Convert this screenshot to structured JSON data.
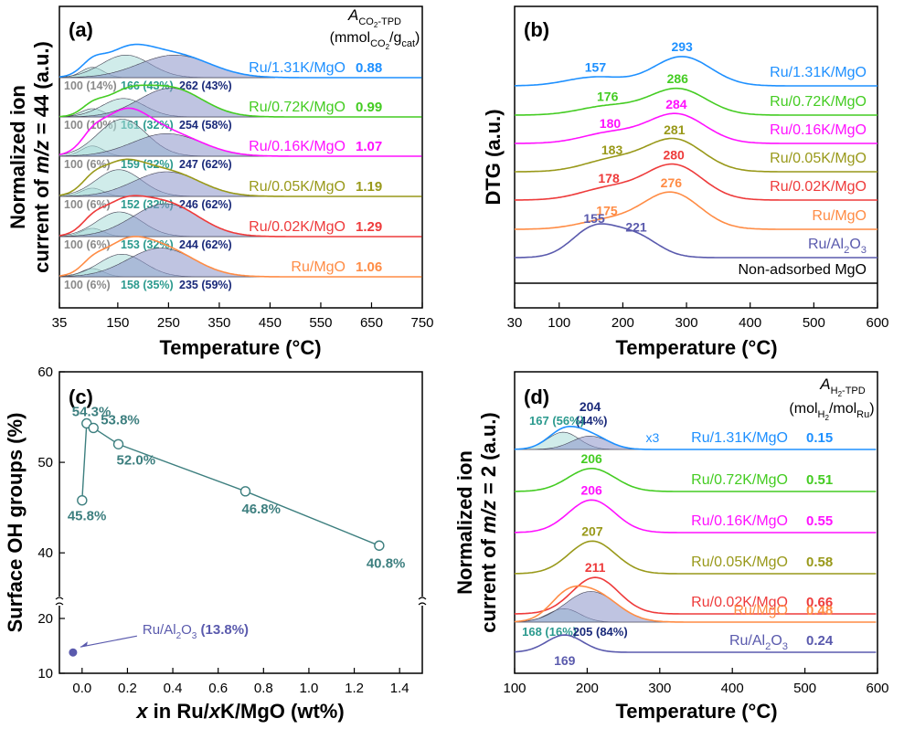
{
  "colors": {
    "axis": "#000000",
    "ru131": "#1e90ff",
    "ru072": "#44cc22",
    "ru016": "#ff11ff",
    "ru005": "#99991a",
    "ru002": "#ee3b3b",
    "rumgo": "#ff8c45",
    "rual": "#5a5aad",
    "teal": "#2b9a8e",
    "navy": "#1a2a7a",
    "grey": "#8a8a8a",
    "ctrend": "#3d7f7f",
    "fillLight": "#aadcd8",
    "fillDark": "#8a93c8"
  },
  "chart_data": [
    {
      "id": "a",
      "type": "line",
      "panel_label": "(a)",
      "xlabel": "Temperature (°C)",
      "ylabel_line1": "Normalized ion",
      "ylabel_line2_pre": "current of ",
      "ylabel_line2_ital": "m/z",
      "ylabel_line2_post": " = 44 (a.u.)",
      "xlim": [
        35,
        750
      ],
      "xticks": [
        35,
        150,
        250,
        350,
        450,
        550,
        650,
        750
      ],
      "header_A": "A",
      "header_sub": "CO",
      "header_sub2": "2",
      "header_sub3": "-TPD",
      "header_unit_open": "(mmol",
      "header_unit_sub": "CO",
      "header_unit_sub2": "2",
      "header_unit_mid": "/g",
      "header_unit_sub3": "cat",
      "header_unit_close": ")",
      "series": [
        {
          "name": "Ru/1.31K/MgO",
          "color": "ru131",
          "value": "0.88",
          "peaks": [
            {
              "t": 100,
              "a": 0.25,
              "w": 22
            },
            {
              "t": 166,
              "a": 0.55,
              "w": 48
            },
            {
              "t": 262,
              "a": 0.55,
              "w": 70
            }
          ]
        },
        {
          "name": "Ru/0.72K/MgO",
          "color": "ru072",
          "value": "0.99",
          "peaks": [
            {
              "t": 100,
              "a": 0.2,
              "w": 22
            },
            {
              "t": 161,
              "a": 0.45,
              "w": 42
            },
            {
              "t": 254,
              "a": 0.7,
              "w": 62
            }
          ]
        },
        {
          "name": "Ru/0.16K/MgO",
          "color": "ru016",
          "value": "1.07",
          "peaks": [
            {
              "t": 100,
              "a": 0.25,
              "w": 22
            },
            {
              "t": 159,
              "a": 0.9,
              "w": 48
            },
            {
              "t": 247,
              "a": 0.55,
              "w": 68
            }
          ]
        },
        {
          "name": "Ru/0.05K/MgO",
          "color": "ru005",
          "value": "1.19",
          "peaks": [
            {
              "t": 100,
              "a": 0.2,
              "w": 22
            },
            {
              "t": 152,
              "a": 0.65,
              "w": 45
            },
            {
              "t": 246,
              "a": 0.6,
              "w": 65
            }
          ]
        },
        {
          "name": "Ru/0.02K/MgO",
          "color": "ru002",
          "value": "1.29",
          "peaks": [
            {
              "t": 100,
              "a": 0.2,
              "w": 22
            },
            {
              "t": 153,
              "a": 0.6,
              "w": 45
            },
            {
              "t": 244,
              "a": 0.8,
              "w": 65
            }
          ]
        },
        {
          "name": "Ru/MgO",
          "color": "rumgo",
          "value": "1.06",
          "peaks": [
            {
              "t": 100,
              "a": 0.2,
              "w": 22
            },
            {
              "t": 158,
              "a": 0.55,
              "w": 45
            },
            {
              "t": 235,
              "a": 0.7,
              "w": 65
            }
          ]
        }
      ],
      "annotations": [
        [
          "100 (14%)",
          "166 (43%)",
          "262 (43%)"
        ],
        [
          "100 (10%)",
          "161 (32%)",
          "254 (58%)"
        ],
        [
          "100 (6%)",
          "159 (32%)",
          "247 (62%)"
        ],
        [
          "100 (6%)",
          "152 (32%)",
          "246 (62%)"
        ],
        [
          "100 (6%)",
          "153 (32%)",
          "244 (62%)"
        ],
        [
          "100 (6%)",
          "158 (35%)",
          "235 (59%)"
        ]
      ]
    },
    {
      "id": "b",
      "type": "line",
      "panel_label": "(b)",
      "xlabel": "Temperature (°C)",
      "ylabel": "DTG (a.u.)",
      "xlim": [
        30,
        600
      ],
      "xticks": [
        30,
        100,
        200,
        300,
        400,
        500,
        600
      ],
      "series": [
        {
          "name": "Ru/1.31K/MgO",
          "color": "ru131",
          "peaks": [
            {
              "t": 157,
              "a": 0.3,
              "w": 45
            },
            {
              "t": 293,
              "a": 1.0,
              "w": 45
            }
          ],
          "labels": [
            "157",
            "293"
          ]
        },
        {
          "name": "Ru/0.72K/MgO",
          "color": "ru072",
          "peaks": [
            {
              "t": 176,
              "a": 0.3,
              "w": 45
            },
            {
              "t": 286,
              "a": 0.9,
              "w": 45
            }
          ],
          "labels": [
            "176",
            "286"
          ]
        },
        {
          "name": "Ru/0.16K/MgO",
          "color": "ru016",
          "peaks": [
            {
              "t": 180,
              "a": 0.35,
              "w": 45
            },
            {
              "t": 284,
              "a": 1.0,
              "w": 45
            }
          ],
          "labels": [
            "180",
            "284"
          ]
        },
        {
          "name": "Ru/0.05K/MgO",
          "color": "ru005",
          "peaks": [
            {
              "t": 183,
              "a": 0.4,
              "w": 45
            },
            {
              "t": 281,
              "a": 1.1,
              "w": 45
            }
          ],
          "labels": [
            "183",
            "281"
          ]
        },
        {
          "name": "Ru/0.02K/MgO",
          "color": "ru002",
          "peaks": [
            {
              "t": 178,
              "a": 0.4,
              "w": 45
            },
            {
              "t": 280,
              "a": 1.2,
              "w": 45
            }
          ],
          "labels": [
            "178",
            "280"
          ]
        },
        {
          "name": "Ru/MgO",
          "color": "rumgo",
          "peaks": [
            {
              "t": 175,
              "a": 0.3,
              "w": 45
            },
            {
              "t": 276,
              "a": 1.25,
              "w": 45
            }
          ],
          "labels": [
            "175",
            "276"
          ]
        },
        {
          "name_pre": "Ru/Al",
          "name_sub": "2",
          "name_mid": "O",
          "name_sub2": "3",
          "color": "rual",
          "peaks": [
            {
              "t": 155,
              "a": 1.0,
              "w": 35
            },
            {
              "t": 221,
              "a": 0.7,
              "w": 35
            }
          ],
          "labels": [
            "155",
            "221"
          ]
        },
        {
          "name": "Non-adsorbed MgO",
          "color": "axis",
          "peaks": [],
          "labels": []
        }
      ]
    },
    {
      "id": "c",
      "type": "scatter",
      "panel_label": "(c)",
      "xlabel_ital": "x",
      "xlabel_mid": " in Ru/",
      "xlabel_ital2": "x",
      "xlabel_post": "K/MgO (wt%)",
      "ylabel": "Surface OH groups (%)",
      "xlim": [
        -0.1,
        1.5
      ],
      "xticks": [
        "0.0",
        "0.2",
        "0.4",
        "0.6",
        "0.8",
        "1.0",
        "1.2",
        "1.4"
      ],
      "yticks_upper": [
        "40",
        "50",
        "60"
      ],
      "yticks_lower": [
        "10",
        "20"
      ],
      "points": [
        {
          "x": 0.0,
          "y": 45.8,
          "label": "45.8%"
        },
        {
          "x": 0.02,
          "y": 54.3,
          "label": "54.3%"
        },
        {
          "x": 0.05,
          "y": 53.8,
          "label": "53.8%"
        },
        {
          "x": 0.16,
          "y": 52.0,
          "label": "52.0%"
        },
        {
          "x": 0.72,
          "y": 46.8,
          "label": "46.8%"
        },
        {
          "x": 1.31,
          "y": 40.8,
          "label": "40.8%"
        }
      ],
      "ref_point": {
        "x": -0.04,
        "y": 13.8,
        "label_pre": "Ru/Al",
        "label_sub": "2",
        "label_mid": "O",
        "label_sub2": "3",
        "label_post": " (13.8%)"
      }
    },
    {
      "id": "d",
      "type": "line",
      "panel_label": "(d)",
      "xlabel": "Temperature (°C)",
      "ylabel_line1": "Normalized ion",
      "ylabel_line2_pre": "current of ",
      "ylabel_line2_ital": "m/z",
      "ylabel_line2_post": " = 2 (a.u.)",
      "xlim": [
        100,
        600
      ],
      "xticks": [
        100,
        200,
        300,
        400,
        500,
        600
      ],
      "header_A": "A",
      "header_sub": "H",
      "header_sub2": "2",
      "header_sub3": "-TPD",
      "header_unit_open": "(mol",
      "header_unit_sub": "H",
      "header_unit_sub2": "2",
      "header_unit_mid": "/mol",
      "header_unit_sub3": "Ru",
      "header_unit_close": ")",
      "multiplier": "x3",
      "series": [
        {
          "name": "Ru/1.31K/MgO",
          "color": "ru131",
          "value": "0.15",
          "peaks": [
            {
              "t": 167,
              "a": 0.45,
              "w": 22
            },
            {
              "t": 204,
              "a": 0.35,
              "w": 25
            }
          ],
          "labels": [
            "204"
          ]
        },
        {
          "name": "Ru/0.72K/MgO",
          "color": "ru072",
          "value": "0.51",
          "peaks": [
            {
              "t": 206,
              "a": 0.6,
              "w": 32
            }
          ],
          "labels": [
            "206"
          ]
        },
        {
          "name": "Ru/0.16K/MgO",
          "color": "ru016",
          "value": "0.55",
          "peaks": [
            {
              "t": 206,
              "a": 0.85,
              "w": 32
            }
          ],
          "labels": [
            "206"
          ]
        },
        {
          "name": "Ru/0.05K/MgO",
          "color": "ru005",
          "value": "0.58",
          "peaks": [
            {
              "t": 207,
              "a": 0.85,
              "w": 32
            }
          ],
          "labels": [
            "207"
          ]
        },
        {
          "name": "Ru/0.02K/MgO",
          "color": "ru002",
          "value": "0.66",
          "peaks": [
            {
              "t": 211,
              "a": 0.95,
              "w": 32
            }
          ],
          "labels": [
            "211"
          ]
        },
        {
          "name": "Ru/MgO",
          "color": "rumgo",
          "value": "0.48",
          "peaks": [
            {
              "t": 168,
              "a": 0.35,
              "w": 22
            },
            {
              "t": 205,
              "a": 0.8,
              "w": 35
            }
          ],
          "labels": []
        },
        {
          "name_pre": "Ru/Al",
          "name_sub": "2",
          "name_mid": "O",
          "name_sub2": "3",
          "color": "rual",
          "value": "0.24",
          "peaks": [
            {
              "t": 169,
              "a": 0.45,
              "w": 25
            }
          ],
          "labels": [
            "169"
          ]
        }
      ],
      "top_annot": [
        "167 (56%)",
        "(44%)"
      ],
      "mgo_annot": [
        "168 (16%)",
        "205 (84%)"
      ]
    }
  ]
}
